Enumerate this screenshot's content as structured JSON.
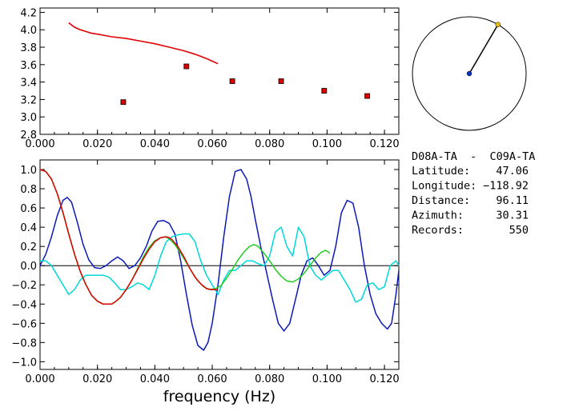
{
  "chart_data": [
    {
      "type": "scatter",
      "xlim": [
        0.0,
        0.125
      ],
      "ylim": [
        2.8,
        4.25
      ],
      "x_ticks": [
        "0.000",
        "0.020",
        "0.040",
        "0.060",
        "0.080",
        "0.100",
        "0.120"
      ],
      "y_ticks": [
        "2.8",
        "3.0",
        "3.2",
        "3.4",
        "3.6",
        "3.8",
        "4.0",
        "4.2"
      ],
      "grid": false,
      "series": [
        {
          "kind": "line",
          "color": "#dd0000",
          "x": [
            0.01,
            0.012,
            0.014,
            0.016,
            0.018,
            0.02,
            0.025,
            0.03,
            0.035,
            0.04,
            0.045,
            0.05,
            0.054,
            0.058,
            0.06,
            0.062
          ],
          "y": [
            4.08,
            4.03,
            4.0,
            3.98,
            3.96,
            3.95,
            3.92,
            3.9,
            3.87,
            3.84,
            3.8,
            3.76,
            3.72,
            3.67,
            3.64,
            3.61
          ]
        },
        {
          "kind": "markers",
          "color": "#dd0000",
          "x": [
            0.029,
            0.051,
            0.067,
            0.084,
            0.099,
            0.114
          ],
          "y": [
            3.17,
            3.58,
            3.41,
            3.41,
            3.3,
            3.24
          ]
        }
      ]
    },
    {
      "type": "line",
      "xlim": [
        0.0,
        0.125
      ],
      "ylim": [
        -1.08,
        1.1
      ],
      "xlabel": "frequency (Hz)",
      "x_ticks": [
        "0.000",
        "0.020",
        "0.040",
        "0.060",
        "0.080",
        "0.100",
        "0.120"
      ],
      "y_ticks": [
        "1.0",
        "0.8",
        "0.6",
        "0.4",
        "0.2",
        "0.0",
        "−0.2",
        "−0.4",
        "−0.6",
        "−0.8",
        "−1.0"
      ],
      "zero_line": true,
      "grid": false,
      "series": [
        {
          "color": "#0b1ab8",
          "x": [
            0.0,
            0.002,
            0.004,
            0.006,
            0.008,
            0.0095,
            0.011,
            0.013,
            0.015,
            0.017,
            0.019,
            0.021,
            0.023,
            0.025,
            0.027,
            0.029,
            0.031,
            0.033,
            0.035,
            0.037,
            0.039,
            0.041,
            0.043,
            0.045,
            0.047,
            0.049,
            0.051,
            0.053,
            0.055,
            0.057,
            0.0585,
            0.06,
            0.062,
            0.064,
            0.066,
            0.068,
            0.07,
            0.072,
            0.0735,
            0.075,
            0.077,
            0.079,
            0.081,
            0.083,
            0.085,
            0.087,
            0.089,
            0.091,
            0.093,
            0.095,
            0.097,
            0.099,
            0.101,
            0.103,
            0.105,
            0.107,
            0.109,
            0.111,
            0.113,
            0.115,
            0.117,
            0.119,
            0.121,
            0.1225,
            0.124,
            0.125
          ],
          "y": [
            0.0,
            0.12,
            0.3,
            0.52,
            0.68,
            0.71,
            0.66,
            0.45,
            0.22,
            0.06,
            -0.02,
            -0.03,
            0.0,
            0.05,
            0.09,
            0.05,
            -0.03,
            0.0,
            0.08,
            0.2,
            0.36,
            0.46,
            0.47,
            0.44,
            0.33,
            0.05,
            -0.3,
            -0.62,
            -0.83,
            -0.88,
            -0.8,
            -0.6,
            -0.2,
            0.3,
            0.72,
            0.98,
            1.0,
            0.9,
            0.72,
            0.48,
            0.18,
            -0.08,
            -0.35,
            -0.6,
            -0.68,
            -0.6,
            -0.35,
            -0.1,
            0.05,
            0.08,
            0.0,
            -0.1,
            -0.05,
            0.2,
            0.55,
            0.68,
            0.65,
            0.4,
            0.0,
            -0.3,
            -0.5,
            -0.6,
            -0.66,
            -0.6,
            -0.3,
            -0.05
          ]
        },
        {
          "color": "#00d8d8",
          "x": [
            0.0,
            0.002,
            0.004,
            0.006,
            0.008,
            0.01,
            0.012,
            0.014,
            0.016,
            0.018,
            0.02,
            0.022,
            0.024,
            0.026,
            0.028,
            0.03,
            0.032,
            0.034,
            0.036,
            0.038,
            0.04,
            0.042,
            0.044,
            0.046,
            0.048,
            0.05,
            0.052,
            0.054,
            0.056,
            0.058,
            0.06,
            0.062,
            0.064,
            0.066,
            0.068,
            0.07,
            0.072,
            0.074,
            0.076,
            0.078,
            0.08,
            0.082,
            0.084,
            0.086,
            0.088,
            0.09,
            0.092,
            0.094,
            0.096,
            0.098,
            0.1,
            0.102,
            0.104,
            0.106,
            0.108,
            0.11,
            0.112,
            0.114,
            0.116,
            0.118,
            0.12,
            0.122,
            0.124,
            0.125
          ],
          "y": [
            0.05,
            0.05,
            0.0,
            -0.1,
            -0.2,
            -0.3,
            -0.25,
            -0.15,
            -0.1,
            -0.1,
            -0.1,
            -0.1,
            -0.12,
            -0.18,
            -0.25,
            -0.25,
            -0.22,
            -0.18,
            -0.2,
            -0.25,
            -0.1,
            0.1,
            0.25,
            0.3,
            0.32,
            0.33,
            0.33,
            0.25,
            0.05,
            -0.1,
            -0.2,
            -0.3,
            -0.15,
            -0.05,
            -0.05,
            0.0,
            0.05,
            0.05,
            0.02,
            0.0,
            0.1,
            0.35,
            0.4,
            0.2,
            0.1,
            0.4,
            0.3,
            0.0,
            -0.1,
            -0.15,
            -0.1,
            -0.05,
            -0.05,
            -0.15,
            -0.25,
            -0.38,
            -0.35,
            -0.2,
            -0.18,
            -0.25,
            -0.22,
            0.0,
            0.05,
            0.0
          ]
        },
        {
          "color": "#22cc22",
          "x": [
            0.0,
            0.002,
            0.004,
            0.006,
            0.008,
            0.01,
            0.012,
            0.014,
            0.016,
            0.018,
            0.02,
            0.022,
            0.024,
            0.025,
            0.026,
            0.028,
            0.03,
            0.032,
            0.034,
            0.036,
            0.038,
            0.04,
            0.042,
            0.0435,
            0.045,
            0.047,
            0.049,
            0.051,
            0.053,
            0.055,
            0.057,
            0.059,
            0.061,
            0.063,
            0.065,
            0.067,
            0.069,
            0.071,
            0.073,
            0.0745,
            0.076,
            0.078,
            0.08,
            0.082,
            0.084,
            0.086,
            0.088,
            0.09,
            0.092,
            0.094,
            0.096,
            0.098,
            0.0995,
            0.101
          ],
          "y": [
            1.0,
            0.98,
            0.9,
            0.75,
            0.55,
            0.33,
            0.12,
            -0.06,
            -0.2,
            -0.31,
            -0.37,
            -0.4,
            -0.4,
            -0.4,
            -0.38,
            -0.33,
            -0.25,
            -0.15,
            -0.03,
            0.09,
            0.19,
            0.26,
            0.29,
            0.3,
            0.28,
            0.22,
            0.13,
            0.03,
            -0.07,
            -0.16,
            -0.22,
            -0.25,
            -0.24,
            -0.21,
            -0.13,
            -0.04,
            0.06,
            0.14,
            0.2,
            0.22,
            0.2,
            0.13,
            0.05,
            -0.04,
            -0.11,
            -0.16,
            -0.17,
            -0.14,
            -0.08,
            0.0,
            0.08,
            0.14,
            0.16,
            0.13
          ]
        },
        {
          "color": "#dd0000",
          "x": [
            0.0,
            0.002,
            0.004,
            0.006,
            0.008,
            0.01,
            0.012,
            0.014,
            0.016,
            0.018,
            0.02,
            0.022,
            0.024,
            0.025,
            0.026,
            0.028,
            0.03,
            0.032,
            0.034,
            0.036,
            0.038,
            0.04,
            0.042,
            0.044,
            0.045,
            0.046,
            0.048,
            0.05,
            0.052,
            0.054,
            0.056,
            0.058,
            0.06,
            0.062
          ],
          "y": [
            1.0,
            0.98,
            0.9,
            0.75,
            0.55,
            0.33,
            0.12,
            -0.06,
            -0.2,
            -0.31,
            -0.37,
            -0.4,
            -0.4,
            -0.4,
            -0.38,
            -0.33,
            -0.25,
            -0.15,
            -0.04,
            0.07,
            0.17,
            0.25,
            0.29,
            0.3,
            0.29,
            0.27,
            0.2,
            0.1,
            -0.02,
            -0.12,
            -0.19,
            -0.24,
            -0.25,
            -0.25
          ]
        }
      ]
    }
  ],
  "compass": {
    "azimuth": 30.31,
    "ring_color": "#000000",
    "needle_color": "#000000",
    "center_dot_color": "#1030c0",
    "tip_dot_color": "#e8c000"
  },
  "info": {
    "station_pair": "D08A-TA  -  C09A-TA",
    "lines": [
      {
        "label": "Latitude:",
        "value": "47.06"
      },
      {
        "label": "Longitude:",
        "value": "−118.92"
      },
      {
        "label": "Distance:",
        "value": "96.11"
      },
      {
        "label": "Azimuth:",
        "value": "30.31"
      },
      {
        "label": "Records:",
        "value": "550"
      }
    ]
  }
}
